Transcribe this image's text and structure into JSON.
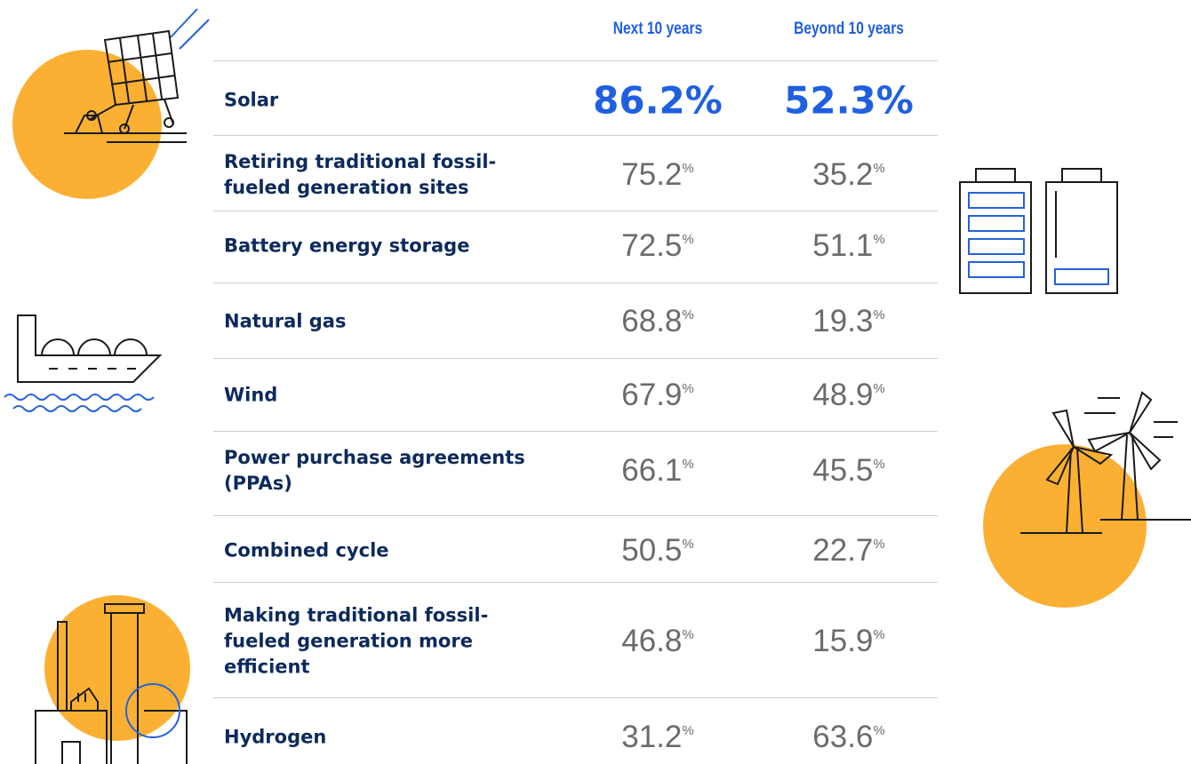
{
  "table": {
    "columns": [
      "Next 10 years",
      "Beyond 10 years"
    ],
    "unit": "%",
    "rows": [
      {
        "label": "Solar",
        "values": [
          86.2,
          52.3
        ]
      },
      {
        "label": "Retiring traditional fossil-fueled generation sites",
        "values": [
          75.2,
          35.2
        ]
      },
      {
        "label": "Battery energy storage",
        "values": [
          72.5,
          51.1
        ]
      },
      {
        "label": "Natural gas",
        "values": [
          68.8,
          19.3
        ]
      },
      {
        "label": "Wind",
        "values": [
          67.9,
          48.9
        ]
      },
      {
        "label": "Power purchase agreements (PPAs)",
        "values": [
          66.1,
          45.5
        ]
      },
      {
        "label": "Combined cycle",
        "values": [
          50.5,
          22.7
        ]
      },
      {
        "label": "Making traditional fossil-fueled generation more efficient",
        "values": [
          46.8,
          15.9
        ]
      },
      {
        "label": "Hydrogen",
        "values": [
          31.2,
          63.6
        ]
      }
    ]
  }
}
